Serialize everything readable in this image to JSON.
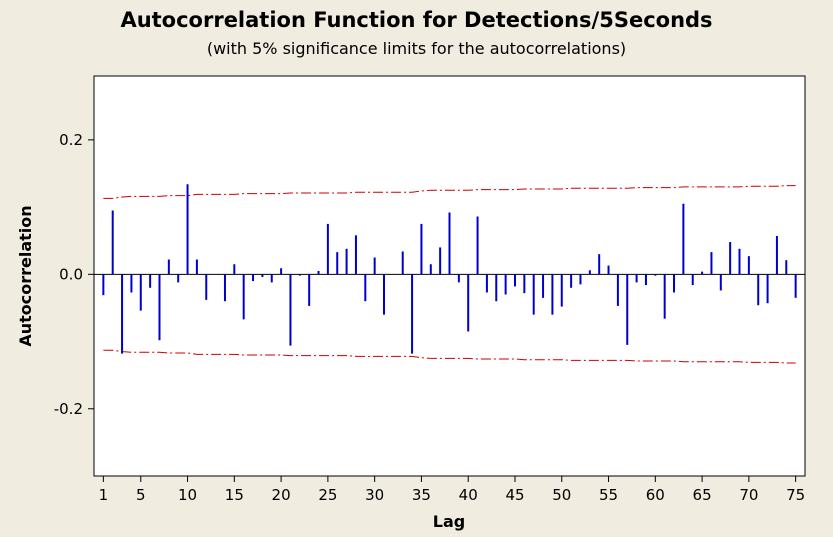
{
  "chart_data": {
    "type": "bar",
    "title": "Autocorrelation Function for Detections/5Seconds",
    "subtitle": "(with 5% significance limits for the autocorrelations)",
    "xlabel": "Lag",
    "ylabel": "Autocorrelation",
    "xlim": [
      0,
      76
    ],
    "ylim": [
      -0.3,
      0.295
    ],
    "x_ticks": [
      1,
      5,
      10,
      15,
      20,
      25,
      30,
      35,
      40,
      45,
      50,
      55,
      60,
      65,
      70,
      75
    ],
    "y_ticks": [
      0.2,
      0.0,
      -0.2
    ],
    "y_tick_labels": [
      "0.2",
      "0.0",
      "-0.2"
    ],
    "grid": false,
    "bar_color": "#0000cc",
    "limit_color": "#cc0000",
    "x": [
      1,
      2,
      3,
      4,
      5,
      6,
      7,
      8,
      9,
      10,
      11,
      12,
      13,
      14,
      15,
      16,
      17,
      18,
      19,
      20,
      21,
      22,
      23,
      24,
      25,
      26,
      27,
      28,
      29,
      30,
      31,
      32,
      33,
      34,
      35,
      36,
      37,
      38,
      39,
      40,
      41,
      42,
      43,
      44,
      45,
      46,
      47,
      48,
      49,
      50,
      51,
      52,
      53,
      54,
      55,
      56,
      57,
      58,
      59,
      60,
      61,
      62,
      63,
      64,
      65,
      66,
      67,
      68,
      69,
      70,
      71,
      72,
      73,
      74,
      75
    ],
    "values": [
      -0.031,
      0.095,
      -0.118,
      -0.027,
      -0.054,
      -0.02,
      -0.098,
      0.022,
      -0.012,
      0.134,
      0.022,
      -0.038,
      0.0,
      -0.04,
      0.015,
      -0.067,
      -0.01,
      -0.004,
      -0.012,
      0.009,
      -0.106,
      -0.002,
      -0.047,
      0.005,
      0.075,
      0.033,
      0.038,
      0.058,
      -0.04,
      0.025,
      -0.06,
      0.0,
      0.034,
      -0.118,
      0.075,
      0.015,
      0.04,
      0.092,
      -0.012,
      -0.085,
      0.086,
      -0.027,
      -0.04,
      -0.03,
      -0.018,
      -0.028,
      -0.06,
      -0.035,
      -0.06,
      -0.048,
      -0.02,
      -0.015,
      0.006,
      0.03,
      0.013,
      -0.047,
      -0.105,
      -0.012,
      -0.016,
      -0.002,
      -0.066,
      -0.027,
      0.105,
      -0.016,
      0.004,
      0.033,
      -0.024,
      0.048,
      0.038,
      0.027,
      -0.046,
      -0.043,
      0.057,
      0.021,
      -0.035
    ],
    "upper_limit": [
      0.113,
      0.113,
      0.115,
      0.116,
      0.116,
      0.116,
      0.116,
      0.117,
      0.117,
      0.117,
      0.119,
      0.119,
      0.119,
      0.119,
      0.119,
      0.12,
      0.12,
      0.12,
      0.12,
      0.12,
      0.121,
      0.121,
      0.121,
      0.121,
      0.121,
      0.121,
      0.121,
      0.122,
      0.122,
      0.122,
      0.122,
      0.122,
      0.122,
      0.122,
      0.124,
      0.125,
      0.125,
      0.125,
      0.125,
      0.125,
      0.126,
      0.126,
      0.126,
      0.126,
      0.126,
      0.127,
      0.127,
      0.127,
      0.127,
      0.127,
      0.128,
      0.128,
      0.128,
      0.128,
      0.128,
      0.128,
      0.128,
      0.129,
      0.129,
      0.129,
      0.129,
      0.129,
      0.13,
      0.13,
      0.13,
      0.13,
      0.13,
      0.13,
      0.13,
      0.131,
      0.131,
      0.131,
      0.131,
      0.132,
      0.132
    ],
    "lower_limit": [
      -0.113,
      -0.113,
      -0.115,
      -0.116,
      -0.116,
      -0.116,
      -0.116,
      -0.117,
      -0.117,
      -0.117,
      -0.119,
      -0.119,
      -0.119,
      -0.119,
      -0.119,
      -0.12,
      -0.12,
      -0.12,
      -0.12,
      -0.12,
      -0.121,
      -0.121,
      -0.121,
      -0.121,
      -0.121,
      -0.121,
      -0.121,
      -0.122,
      -0.122,
      -0.122,
      -0.122,
      -0.122,
      -0.122,
      -0.122,
      -0.124,
      -0.125,
      -0.125,
      -0.125,
      -0.125,
      -0.125,
      -0.126,
      -0.126,
      -0.126,
      -0.126,
      -0.126,
      -0.127,
      -0.127,
      -0.127,
      -0.127,
      -0.127,
      -0.128,
      -0.128,
      -0.128,
      -0.128,
      -0.128,
      -0.128,
      -0.128,
      -0.129,
      -0.129,
      -0.129,
      -0.129,
      -0.129,
      -0.13,
      -0.13,
      -0.13,
      -0.13,
      -0.13,
      -0.13,
      -0.13,
      -0.131,
      -0.131,
      -0.131,
      -0.131,
      -0.132,
      -0.132
    ]
  }
}
